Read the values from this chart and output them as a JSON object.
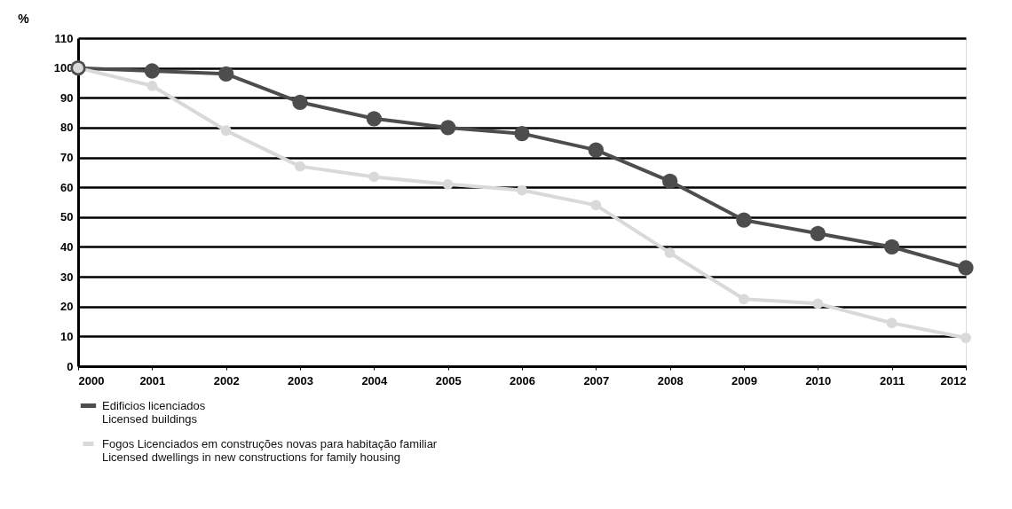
{
  "chart_data": {
    "type": "line",
    "ylabel": "%",
    "x": [
      2000,
      2001,
      2002,
      2003,
      2004,
      2005,
      2006,
      2007,
      2008,
      2009,
      2010,
      2011,
      2012
    ],
    "series": [
      {
        "name": "Edificios licenciados\nLicensed buildings",
        "color": "#4d4d4d",
        "values": [
          100,
          99,
          98,
          88.5,
          83,
          80,
          78,
          72.5,
          62,
          49,
          44.5,
          40,
          33
        ]
      },
      {
        "name": "Fogos Licenciados em construções novas para habitação familiar\nLicensed dwellings in new constructions for family housing",
        "color": "#d9d9d9",
        "values": [
          100,
          94,
          79,
          67,
          63.5,
          61,
          59,
          54,
          38,
          22.5,
          21,
          14.5,
          9.5
        ]
      }
    ],
    "xlim": [
      2000,
      2012
    ],
    "xticks": [
      2000,
      2001,
      2002,
      2003,
      2004,
      2005,
      2006,
      2007,
      2008,
      2009,
      2010,
      2011,
      2012
    ],
    "ylim": [
      0,
      110
    ],
    "yticks": [
      0,
      10,
      20,
      30,
      40,
      50,
      60,
      70,
      80,
      90,
      100,
      110
    ],
    "grid": "y",
    "legend": "bottom",
    "marker": "circle",
    "line_style": "solid"
  }
}
